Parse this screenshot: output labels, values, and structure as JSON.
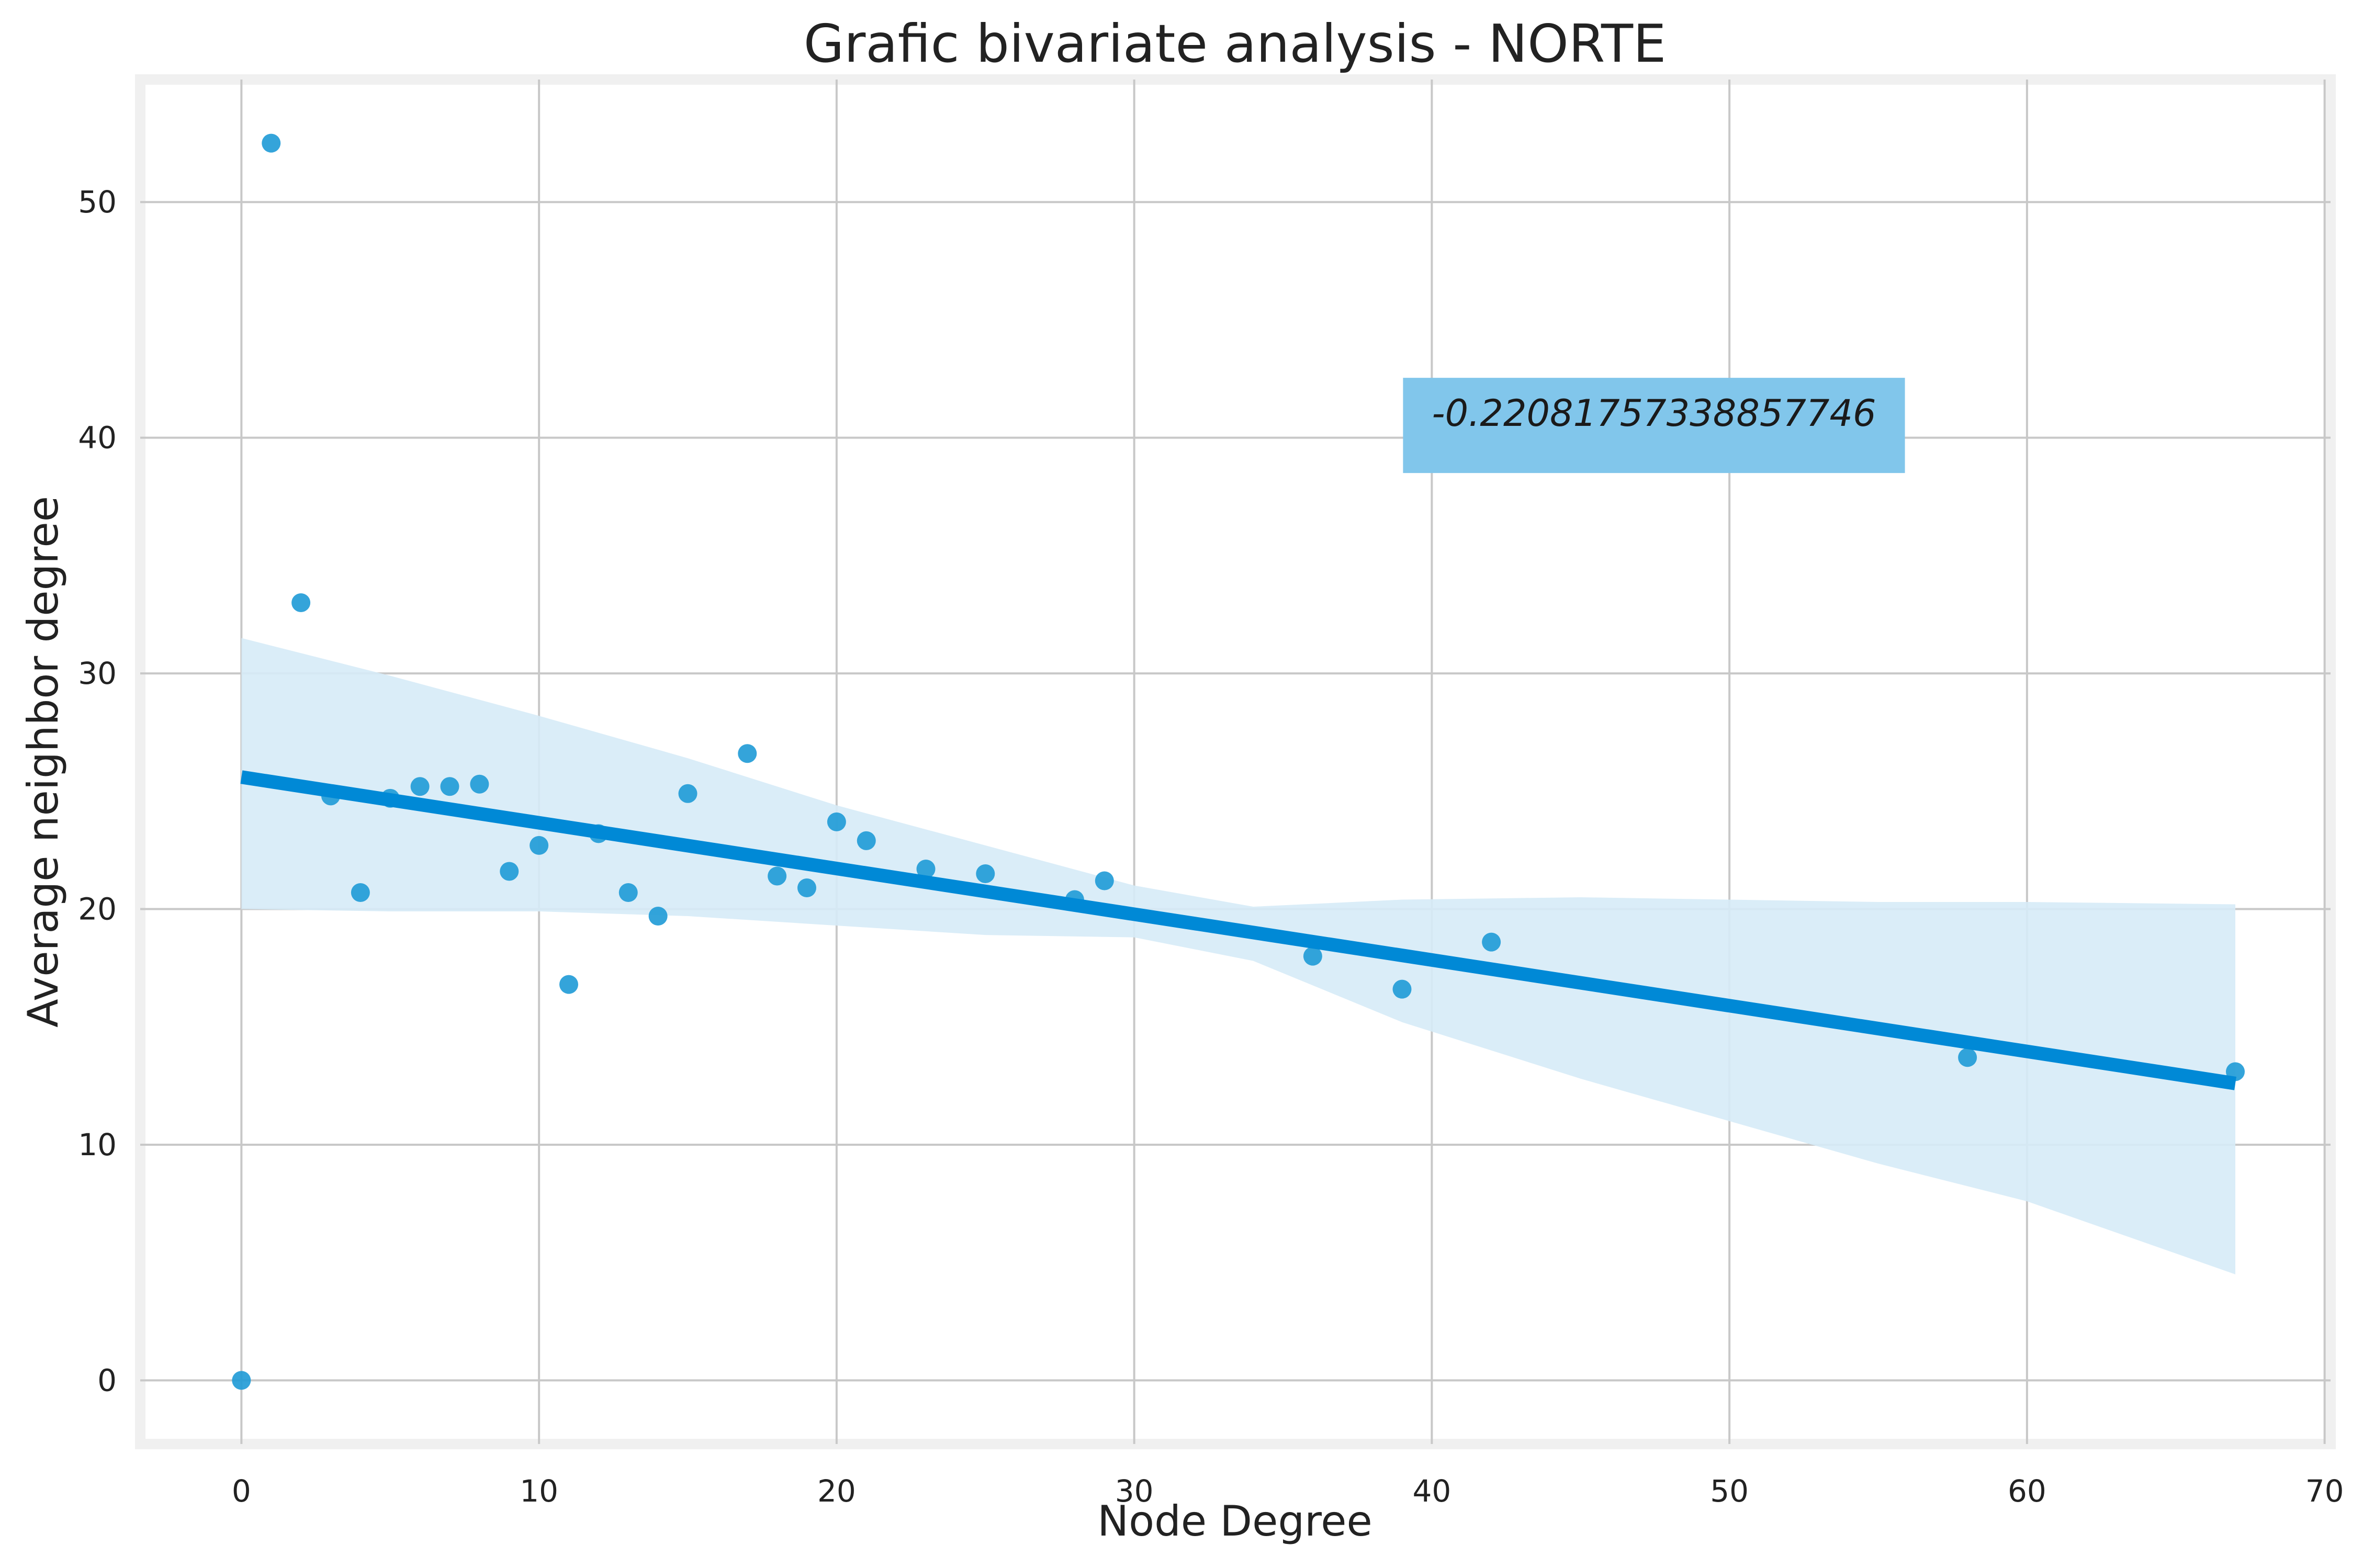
{
  "chart_data": {
    "type": "scatter",
    "title": "Grafic bivariate analysis - NORTE",
    "xlabel": "Node Degree",
    "ylabel": "Average neighbor degree",
    "xlim": [
      -3.4,
      70.2
    ],
    "ylim": [
      -2.7,
      55.2
    ],
    "xticks": [
      0,
      10,
      20,
      30,
      40,
      50,
      60,
      70
    ],
    "yticks": [
      0,
      10,
      20,
      30,
      40,
      50
    ],
    "grid": true,
    "annotation": {
      "text": "-0.22081757338857746",
      "x": 40,
      "y": 40.5,
      "box_color": "#81c6eb"
    },
    "points": [
      {
        "x": 0,
        "y": 0.0
      },
      {
        "x": 1,
        "y": 52.5
      },
      {
        "x": 2,
        "y": 33.0
      },
      {
        "x": 3,
        "y": 24.8
      },
      {
        "x": 4,
        "y": 20.7
      },
      {
        "x": 5,
        "y": 24.7
      },
      {
        "x": 6,
        "y": 25.2
      },
      {
        "x": 7,
        "y": 25.2
      },
      {
        "x": 8,
        "y": 25.3
      },
      {
        "x": 9,
        "y": 21.6
      },
      {
        "x": 10,
        "y": 22.7
      },
      {
        "x": 11,
        "y": 16.8
      },
      {
        "x": 12,
        "y": 23.2
      },
      {
        "x": 13,
        "y": 20.7
      },
      {
        "x": 14,
        "y": 19.7
      },
      {
        "x": 15,
        "y": 24.9
      },
      {
        "x": 17,
        "y": 26.6
      },
      {
        "x": 18,
        "y": 21.4
      },
      {
        "x": 19,
        "y": 20.9
      },
      {
        "x": 20,
        "y": 23.7
      },
      {
        "x": 21,
        "y": 22.9
      },
      {
        "x": 23,
        "y": 21.7
      },
      {
        "x": 25,
        "y": 21.5
      },
      {
        "x": 28,
        "y": 20.4
      },
      {
        "x": 29,
        "y": 21.2
      },
      {
        "x": 36,
        "y": 18.0
      },
      {
        "x": 39,
        "y": 16.6
      },
      {
        "x": 42,
        "y": 18.6
      },
      {
        "x": 58,
        "y": 13.7
      },
      {
        "x": 67,
        "y": 13.1
      }
    ],
    "regression": {
      "x": [
        0,
        67
      ],
      "y": [
        25.6,
        12.6
      ]
    },
    "confidence_band": {
      "x": [
        0,
        5,
        10,
        15,
        20,
        25,
        30,
        34,
        39,
        45,
        50,
        55,
        60,
        67
      ],
      "upper": [
        31.5,
        29.9,
        28.2,
        26.4,
        24.4,
        22.7,
        21.0,
        20.1,
        20.4,
        20.5,
        20.4,
        20.3,
        20.3,
        20.2
      ],
      "lower": [
        20.0,
        19.9,
        19.9,
        19.7,
        19.3,
        18.9,
        18.8,
        17.8,
        15.2,
        12.8,
        11.0,
        9.2,
        7.6,
        4.5
      ]
    },
    "colors": {
      "point": "#1e9ad6",
      "line": "#0089d6",
      "band": "#d6ebf7",
      "grid": "#c8c8c8",
      "frame": "#f0f0f0"
    }
  }
}
